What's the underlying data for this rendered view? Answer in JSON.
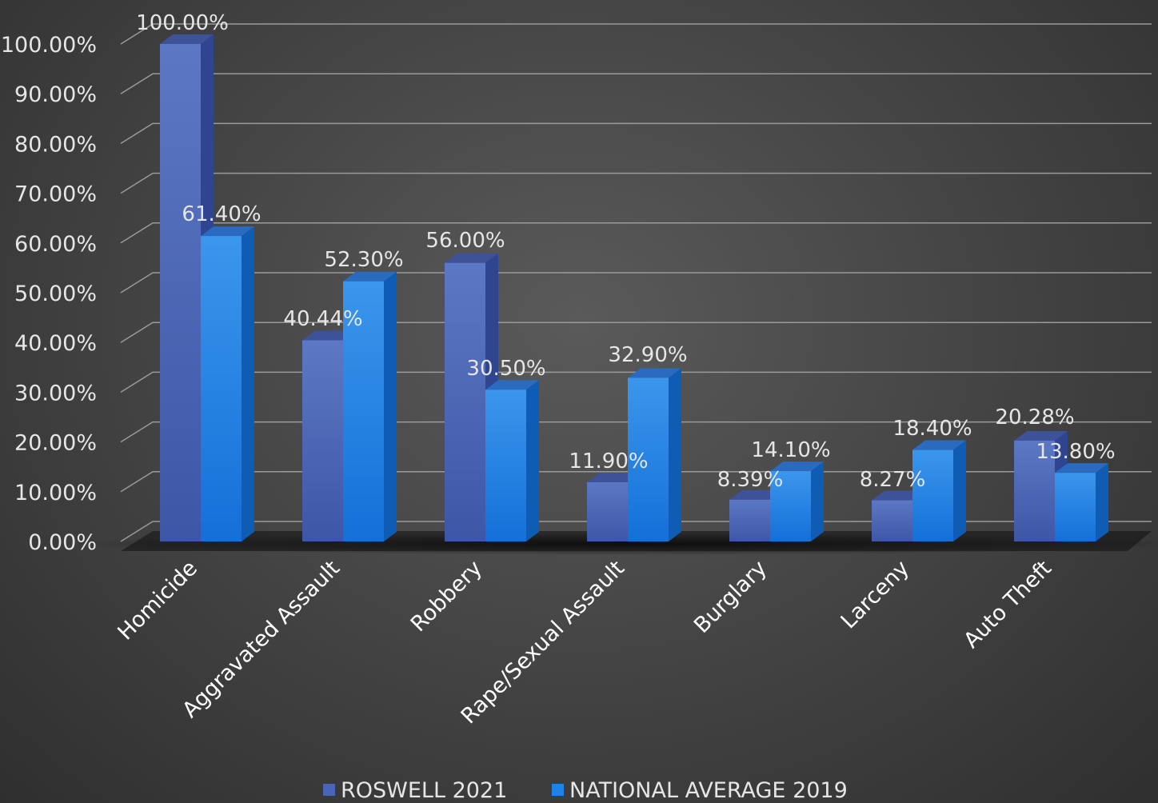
{
  "chart_data": {
    "type": "bar",
    "categories": [
      "Homicide",
      "Aggravated Assault",
      "Robbery",
      "Rape/Sexual Assault",
      "Burglary",
      "Larceny",
      "Auto Theft"
    ],
    "series": [
      {
        "name": "ROSWELL 2021",
        "values": [
          100.0,
          40.44,
          56.0,
          11.9,
          8.39,
          8.27,
          20.28
        ],
        "labels": [
          "100.00%",
          "40.44%",
          "56.00%",
          "11.90%",
          "8.39%",
          "8.27%",
          "20.28%"
        ],
        "color": "#4a64b8"
      },
      {
        "name": "NATIONAL AVERAGE 2019",
        "values": [
          61.4,
          52.3,
          30.5,
          32.9,
          14.1,
          18.4,
          13.8
        ],
        "labels": [
          "61.40%",
          "52.30%",
          "30.50%",
          "32.90%",
          "14.10%",
          "18.40%",
          "13.80%"
        ],
        "color": "#1e82e6"
      }
    ],
    "ytick_labels": [
      "0.00%",
      "10.00%",
      "20.00%",
      "30.00%",
      "40.00%",
      "50.00%",
      "60.00%",
      "70.00%",
      "80.00%",
      "90.00%",
      "100.00%"
    ],
    "ylim": [
      0,
      100
    ],
    "grid": true,
    "legend": "bottom",
    "style": "3d-clustered-column"
  }
}
